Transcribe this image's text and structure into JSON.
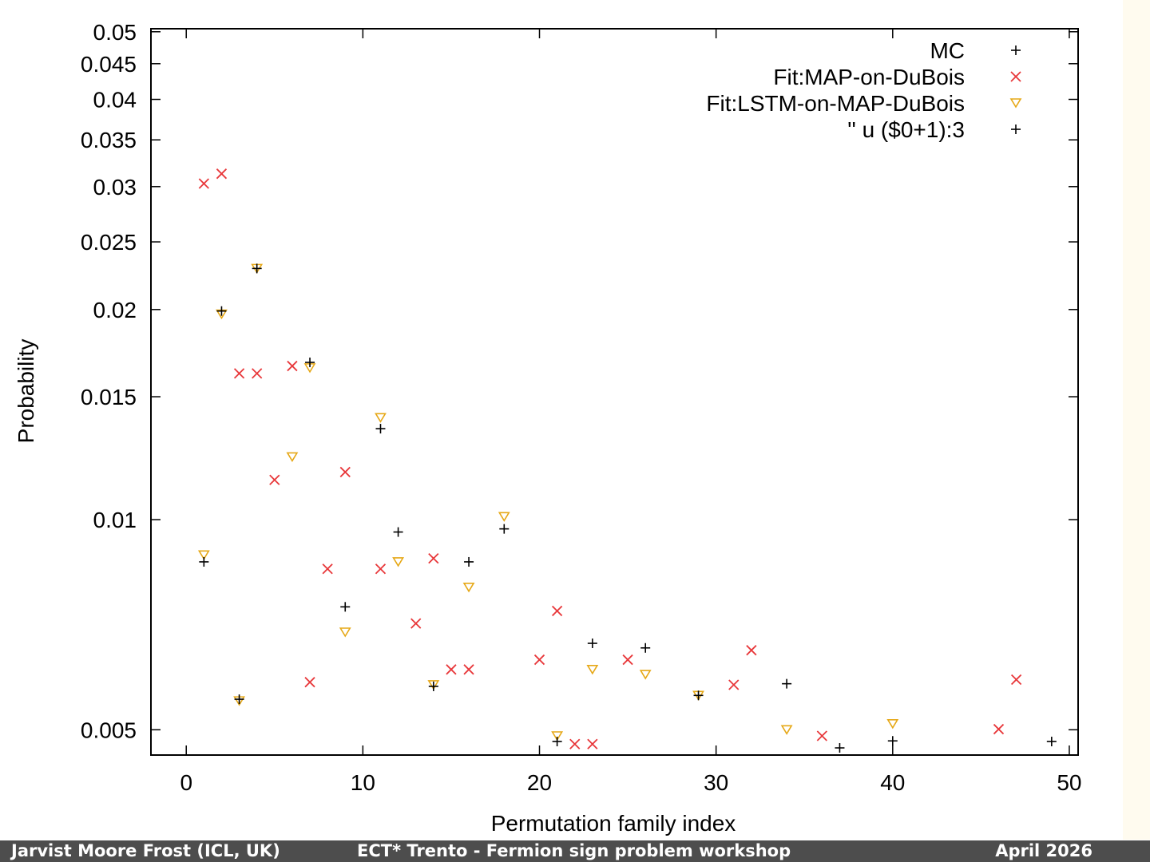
{
  "chart_data": {
    "type": "scatter",
    "xlabel": "Permutation family index",
    "ylabel": "Probability",
    "xlim": [
      -2,
      50.5
    ],
    "ylim": [
      0.0046,
      0.0505
    ],
    "y_scale": "log",
    "x_ticks": [
      0,
      10,
      20,
      30,
      40,
      50
    ],
    "y_ticks": [
      0.005,
      0.01,
      0.015,
      0.02,
      0.025,
      0.03,
      0.035,
      0.04,
      0.045,
      0.05
    ],
    "y_tick_labels": [
      "0.005",
      "0.01",
      "0.015",
      "0.02",
      "0.025",
      "0.03",
      "0.035",
      "0.04",
      "0.045",
      "0.05"
    ],
    "grid": false,
    "legend_position": "top-right",
    "series": [
      {
        "name": "MC",
        "marker": "plus",
        "color": "#000000",
        "points": [
          [
            1,
            0.0087
          ],
          [
            2,
            0.0199
          ],
          [
            3,
            0.00553
          ],
          [
            4,
            0.0229
          ],
          [
            7,
            0.0168
          ],
          [
            9,
            0.0075
          ],
          [
            11,
            0.0135
          ],
          [
            12,
            0.0096
          ],
          [
            14,
            0.00577
          ],
          [
            16,
            0.0087
          ],
          [
            18,
            0.0097
          ],
          [
            21,
            0.00481
          ],
          [
            23,
            0.00665
          ],
          [
            26,
            0.00655
          ],
          [
            29,
            0.0056
          ],
          [
            34,
            0.00582
          ],
          [
            37,
            0.00471
          ],
          [
            40,
            0.00482
          ],
          [
            49,
            0.00481
          ]
        ]
      },
      {
        "name": "Fit:MAP-on-DuBois",
        "marker": "cross",
        "color": "#e8383b",
        "points": [
          [
            1,
            0.0303
          ],
          [
            2,
            0.0313
          ],
          [
            3,
            0.0162
          ],
          [
            4,
            0.0162
          ],
          [
            5,
            0.0114
          ],
          [
            6,
            0.0166
          ],
          [
            7,
            0.00585
          ],
          [
            8,
            0.0085
          ],
          [
            9,
            0.0117
          ],
          [
            11,
            0.0085
          ],
          [
            13,
            0.0071
          ],
          [
            14,
            0.0088
          ],
          [
            15,
            0.0061
          ],
          [
            16,
            0.0061
          ],
          [
            20,
            0.0063
          ],
          [
            21,
            0.0074
          ],
          [
            22,
            0.00477
          ],
          [
            23,
            0.00477
          ],
          [
            25,
            0.0063
          ],
          [
            31,
            0.0058
          ],
          [
            32,
            0.0065
          ],
          [
            36,
            0.0049
          ],
          [
            46,
            0.00501
          ],
          [
            47,
            0.0059
          ]
        ]
      },
      {
        "name": "Fit:LSTM-on-MAP-DuBois",
        "marker": "triangle-down",
        "color": "#e6a817",
        "points": [
          [
            1,
            0.0089
          ],
          [
            2,
            0.0197
          ],
          [
            3,
            0.0055
          ],
          [
            4,
            0.0229
          ],
          [
            6,
            0.0123
          ],
          [
            7,
            0.0165
          ],
          [
            9,
            0.0069
          ],
          [
            11,
            0.014
          ],
          [
            12,
            0.0087
          ],
          [
            14,
            0.0058
          ],
          [
            16,
            0.008
          ],
          [
            18,
            0.0101
          ],
          [
            21,
            0.0049
          ],
          [
            23,
            0.0061
          ],
          [
            26,
            0.006
          ],
          [
            29,
            0.0056
          ],
          [
            34,
            0.005
          ],
          [
            40,
            0.0051
          ]
        ]
      },
      {
        "name": "'' u ($0+1):3",
        "marker": "plus",
        "color": "#000000",
        "points": []
      }
    ]
  },
  "legend": {
    "entries": [
      "MC",
      "Fit:MAP-on-DuBois",
      "Fit:LSTM-on-MAP-DuBois",
      "'' u ($0+1):3"
    ]
  },
  "footer": {
    "left": "Jarvist Moore Frost  (ICL, UK)",
    "center": "ECT* Trento - Fermion sign problem workshop",
    "right": "April  2026"
  }
}
